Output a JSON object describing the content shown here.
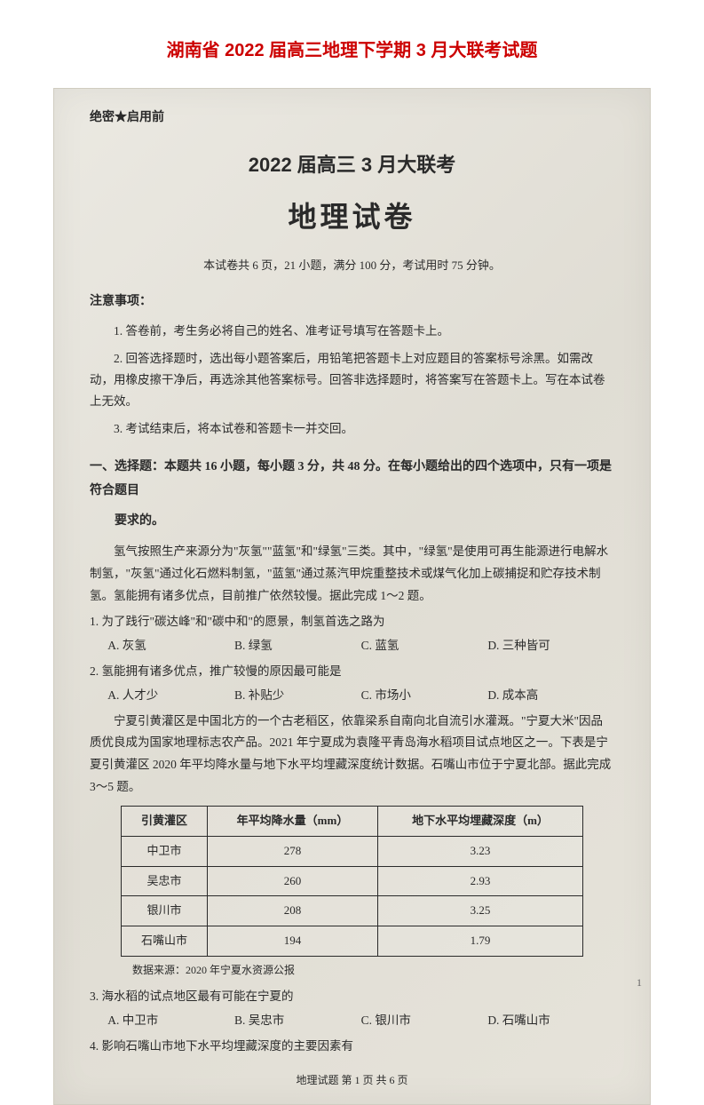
{
  "doc_title": "湖南省 2022 届高三地理下学期 3 月大联考试题",
  "seal": "绝密★启用前",
  "exam_header": "2022 届高三 3 月大联考",
  "exam_subject": "地理试卷",
  "exam_info": "本试卷共 6 页，21 小题，满分 100 分，考试用时 75 分钟。",
  "notice_header": "注意事项：",
  "instructions": [
    "1. 答卷前，考生务必将自己的姓名、准考证号填写在答题卡上。",
    "2. 回答选择题时，选出每小题答案后，用铅笔把答题卡上对应题目的答案标号涂黑。如需改动，用橡皮擦干净后，再选涂其他答案标号。回答非选择题时，将答案写在答题卡上。写在本试卷上无效。",
    "3. 考试结束后，将本试卷和答题卡一并交回。"
  ],
  "section1_header": "一、选择题：本题共 16 小题，每小题 3 分，共 48 分。在每小题给出的四个选项中，只有一项是符合题目",
  "section1_header_sub": "要求的。",
  "passage1": "氢气按照生产来源分为\"灰氢\"\"蓝氢\"和\"绿氢\"三类。其中，\"绿氢\"是使用可再生能源进行电解水制氢，\"灰氢\"通过化石燃料制氢，\"蓝氢\"通过蒸汽甲烷重整技术或煤气化加上碳捕捉和贮存技术制氢。氢能拥有诸多优点，目前推广依然较慢。据此完成 1～2 题。",
  "q1": {
    "text": "1. 为了践行\"碳达峰\"和\"碳中和\"的愿景，制氢首选之路为",
    "options": [
      "A. 灰氢",
      "B. 绿氢",
      "C. 蓝氢",
      "D. 三种皆可"
    ]
  },
  "q2": {
    "text": "2. 氢能拥有诸多优点，推广较慢的原因最可能是",
    "options": [
      "A. 人才少",
      "B. 补贴少",
      "C. 市场小",
      "D. 成本高"
    ]
  },
  "passage2": "宁夏引黄灌区是中国北方的一个古老稻区，依靠梁系自南向北自流引水灌溉。\"宁夏大米\"因品质优良成为国家地理标志农产品。2021 年宁夏成为袁隆平青岛海水稻项目试点地区之一。下表是宁夏引黄灌区 2020 年平均降水量与地下水平均埋藏深度统计数据。石嘴山市位于宁夏北部。据此完成 3～5 题。",
  "table": {
    "columns": [
      "引黄灌区",
      "年平均降水量（mm）",
      "地下水平均埋藏深度（m）"
    ],
    "rows": [
      [
        "中卫市",
        "278",
        "3.23"
      ],
      [
        "吴忠市",
        "260",
        "2.93"
      ],
      [
        "银川市",
        "208",
        "3.25"
      ],
      [
        "石嘴山市",
        "194",
        "1.79"
      ]
    ],
    "border_color": "#2a2a2a",
    "font_size": 13
  },
  "table_source": "数据来源：2020 年宁夏水资源公报",
  "q3": {
    "text": "3. 海水稻的试点地区最有可能在宁夏的",
    "options": [
      "A. 中卫市",
      "B. 吴忠市",
      "C. 银川市",
      "D. 石嘴山市"
    ]
  },
  "q4": {
    "text": "4. 影响石嘴山市地下水平均埋藏深度的主要因素有"
  },
  "footer": "地理试题 第 1 页 共 6 页",
  "page_number": "1",
  "colors": {
    "title_red": "#cc0000",
    "scan_bg": "#e8e6df",
    "text": "#2a2a2a",
    "page_bg": "#ffffff"
  }
}
